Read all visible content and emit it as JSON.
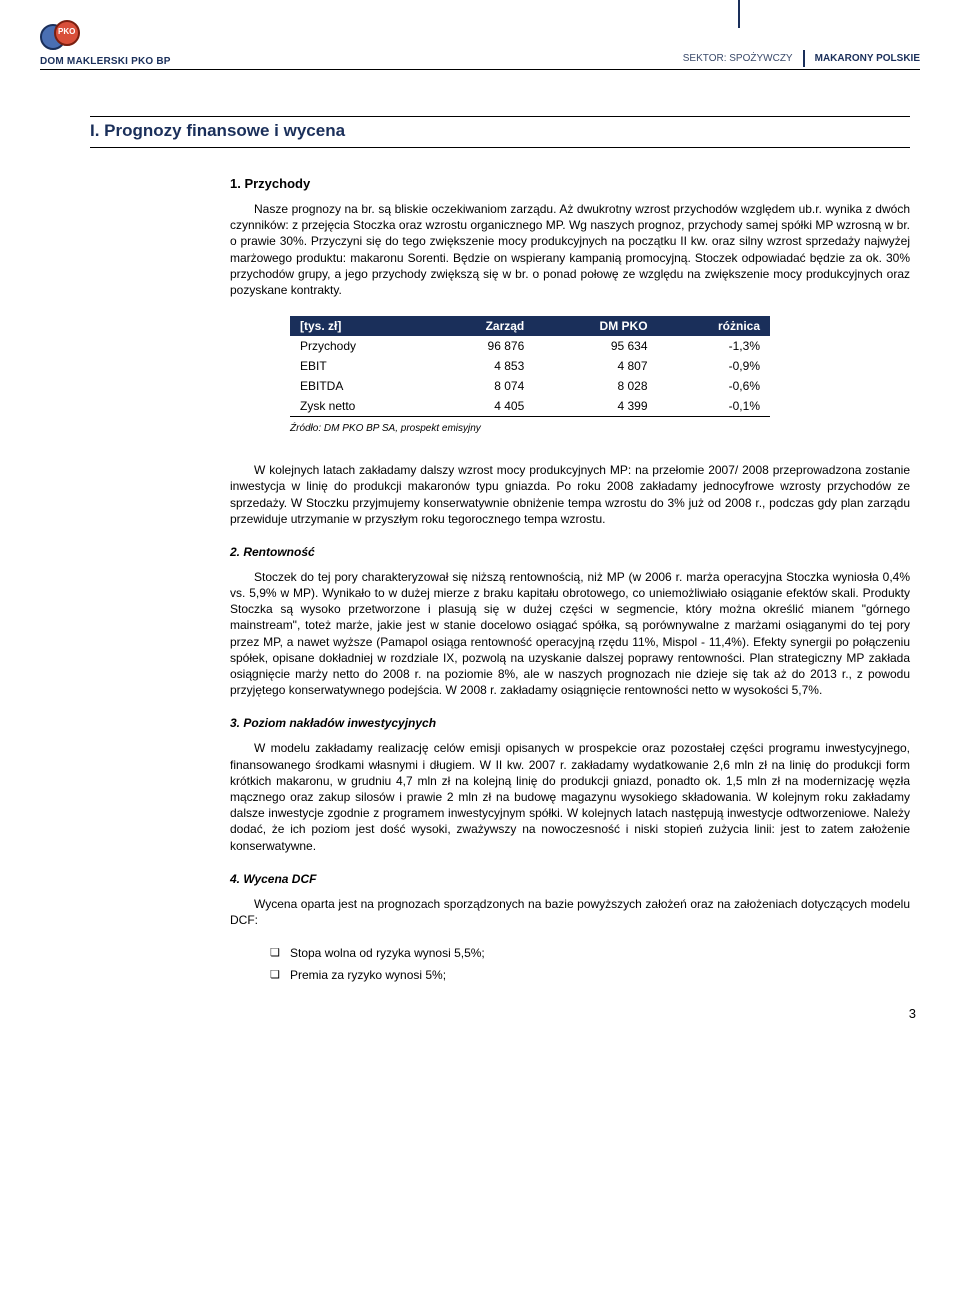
{
  "header": {
    "logo_label": "DOM MAKLERSKI PKO BP",
    "logo_badge": "PKO",
    "sector_label": "SEKTOR: SPOŻYWCZY",
    "company": "MAKARONY POLSKIE"
  },
  "section_title": "I. Prognozy finansowe i wycena",
  "s1": {
    "title": "1. Przychody",
    "p1": "Nasze prognozy na br. są bliskie oczekiwaniom zarządu. Aż dwukrotny wzrost przychodów względem ub.r. wynika z dwóch czynników: z przejęcia Stoczka oraz wzrostu organicznego MP. Wg naszych prognoz, przychody samej spółki MP wzrosną w br. o prawie 30%. Przyczyni się do tego zwiększenie mocy produkcyjnych na początku II kw. oraz silny wzrost sprzedaży najwyżej marżowego produktu: makaronu Sorenti. Będzie on wspierany kampanią promocyjną. Stoczek odpowiadać będzie za ok. 30% przychodów grupy, a jego przychody zwiększą się w br. o ponad połowę ze względu na zwiększenie mocy produkcyjnych oraz pozyskane kontrakty."
  },
  "table": {
    "columns": [
      "[tys. zł]",
      "Zarząd",
      "DM PKO",
      "różnica"
    ],
    "rows": [
      [
        "Przychody",
        "96 876",
        "95 634",
        "-1,3%"
      ],
      [
        "EBIT",
        "4 853",
        "4 807",
        "-0,9%"
      ],
      [
        "EBITDA",
        "8 074",
        "8 028",
        "-0,6%"
      ],
      [
        "Zysk netto",
        "4 405",
        "4 399",
        "-0,1%"
      ]
    ],
    "header_bg": "#1a2f5a",
    "header_fg": "#ffffff",
    "source": "Źródło: DM PKO BP SA, prospekt emisyjny"
  },
  "p_after_table": "W kolejnych latach zakładamy dalszy wzrost mocy produkcyjnych MP: na przełomie 2007/ 2008 przeprowadzona zostanie inwestycja w linię do produkcji makaronów typu gniazda. Po roku 2008 zakładamy jednocyfrowe wzrosty przychodów ze sprzedaży. W Stoczku przyjmujemy konserwatywnie obniżenie tempa wzrostu do 3% już od 2008 r., podczas gdy plan zarządu przewiduje utrzymanie w przyszłym roku tegorocznego tempa wzrostu.",
  "s2": {
    "title": "2. Rentowność",
    "p": "Stoczek do tej pory charakteryzował się niższą rentownością, niż MP (w 2006 r. marża operacyjna Stoczka wyniosła 0,4% vs. 5,9% w MP). Wynikało to w dużej mierze z braku kapitału obrotowego, co uniemożliwiało osiąganie efektów skali. Produkty Stoczka są wysoko przetworzone i plasują się w dużej części w segmencie, który można określić mianem \"górnego mainstream\", toteż marże, jakie jest w stanie docelowo osiągać spółka, są porównywalne z marżami osiąganymi do tej pory przez MP, a nawet wyższe (Pamapol osiąga rentowność operacyjną rzędu 11%, Mispol - 11,4%). Efekty synergii po połączeniu spółek, opisane dokładniej w rozdziale IX, pozwolą na uzyskanie dalszej poprawy rentowności. Plan strategiczny MP zakłada osiągnięcie marży netto do 2008 r. na poziomie 8%, ale w naszych prognozach nie dzieje się tak aż do 2013 r., z powodu przyjętego konserwatywnego podejścia. W 2008 r. zakładamy osiągnięcie rentowności netto w wysokości 5,7%."
  },
  "s3": {
    "title": "3. Poziom nakładów inwestycyjnych",
    "p": "W modelu zakładamy realizację celów emisji opisanych w prospekcie oraz pozostałej części programu inwestycyjnego, finansowanego środkami własnymi i długiem. W II kw. 2007 r. zakładamy wydatkowanie 2,6 mln zł na linię do produkcji form krótkich makaronu, w grudniu 4,7 mln zł na kolejną linię do produkcji gniazd, ponadto ok. 1,5 mln zł na modernizację węzła mącznego oraz zakup silosów i prawie 2 mln zł na budowę magazynu wysokiego składowania. W kolejnym roku zakładamy dalsze inwestycje zgodnie z programem inwestycyjnym spółki. W kolejnych latach następują inwestycje odtworzeniowe. Należy dodać, że ich poziom jest dość wysoki, zważywszy na nowoczesność i niski stopień zużycia linii: jest to zatem założenie konserwatywne."
  },
  "s4": {
    "title": "4. Wycena DCF",
    "p": "Wycena oparta jest na prognozach sporządzonych na bazie powyższych założeń oraz na założeniach dotyczących modelu DCF:",
    "bullets": [
      "Stopa wolna od ryzyka wynosi 5,5%;",
      "Premia za ryzyko wynosi 5%;"
    ]
  },
  "page_number": "3"
}
